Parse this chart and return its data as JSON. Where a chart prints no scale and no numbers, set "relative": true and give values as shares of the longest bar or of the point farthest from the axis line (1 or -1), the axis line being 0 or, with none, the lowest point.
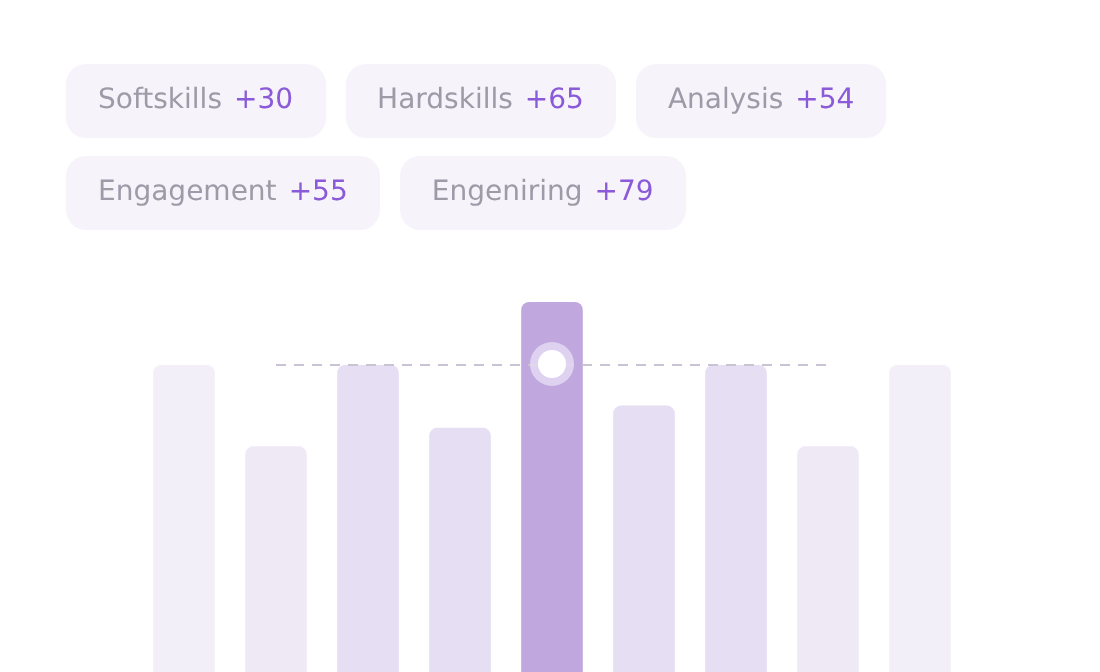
{
  "chart_data": {
    "type": "bar",
    "relative": true,
    "categories": [
      null,
      null,
      null,
      null,
      null,
      null,
      null,
      null,
      null
    ],
    "values": [
      0.83,
      0.61,
      0.83,
      0.66,
      1,
      0.72,
      0.83,
      0.61,
      0.83
    ],
    "colors": [
      "#f3eff8",
      "#efe9f6",
      "#e6def2",
      "#e6def2",
      "#c0a8de",
      "#e6def2",
      "#e6def2",
      "#efe9f6",
      "#f3eff8"
    ],
    "ref_lines": [
      {
        "axis": "y",
        "value": 0.83,
        "color": "#c9c3d3",
        "line_style": "dashed"
      }
    ],
    "annotations": [
      "Softskills +30",
      "Hardskills +65",
      "Analysis +54",
      "Engagement +55",
      "Engeniring +79"
    ]
  }
}
